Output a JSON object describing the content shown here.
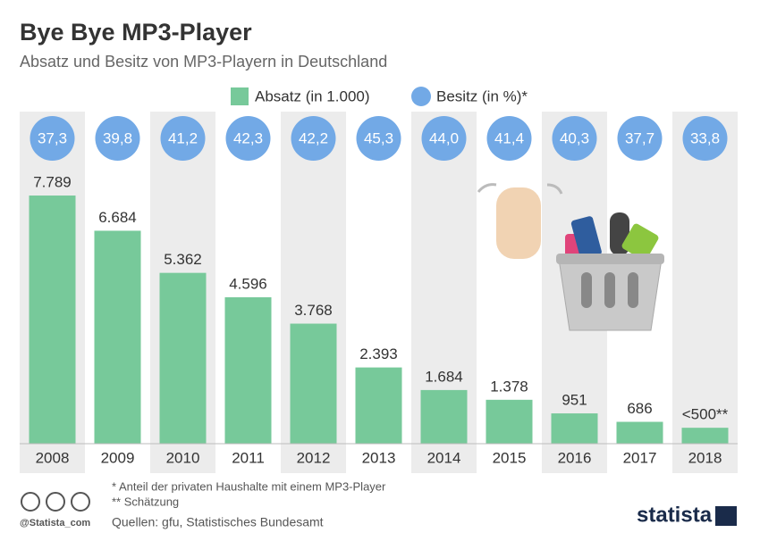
{
  "chart_data": {
    "type": "bar",
    "title": "Bye Bye MP3-Player",
    "subtitle": "Absatz und Besitz von MP3-Playern in Deutschland",
    "categories": [
      "2008",
      "2009",
      "2010",
      "2011",
      "2012",
      "2013",
      "2014",
      "2015",
      "2016",
      "2017",
      "2018"
    ],
    "series": [
      {
        "name": "Absatz (in 1.000)",
        "color": "#77c99a",
        "type": "bar",
        "values": [
          7789,
          6684,
          5362,
          4596,
          3768,
          2393,
          1684,
          1378,
          951,
          686,
          500
        ],
        "value_labels": [
          "7.789",
          "6.684",
          "5.362",
          "4.596",
          "3.768",
          "2.393",
          "1.684",
          "1.378",
          "951",
          "686",
          "<500**"
        ]
      },
      {
        "name": "Besitz (in %)*",
        "color": "#72a9e6",
        "type": "circle",
        "values": [
          37.3,
          39.8,
          41.2,
          42.3,
          42.2,
          45.3,
          44.0,
          41.4,
          40.3,
          37.7,
          33.8
        ],
        "value_labels": [
          "37,3",
          "39,8",
          "41,2",
          "42,3",
          "42,2",
          "45,3",
          "44,0",
          "41,4",
          "40,3",
          "37,7",
          "33,8"
        ]
      }
    ],
    "ylim": [
      0,
      8000
    ],
    "notes": [
      "*   Anteil der privaten Haushalte mit einem MP3-Player",
      "** Schätzung"
    ],
    "source": "Quellen: gfu, Statistisches Bundesamt",
    "credit": "@Statista_com",
    "brand": "statista"
  }
}
